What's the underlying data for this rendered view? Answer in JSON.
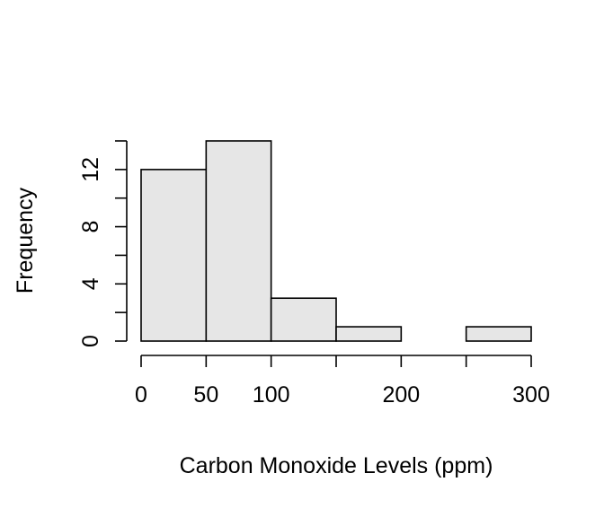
{
  "chart_data": {
    "type": "bar",
    "subtype": "histogram",
    "title": "",
    "xlabel": "Carbon Monoxide Levels (ppm)",
    "ylabel": "Frequency",
    "bins": [
      {
        "start": 0,
        "end": 50,
        "count": 12
      },
      {
        "start": 50,
        "end": 100,
        "count": 14
      },
      {
        "start": 100,
        "end": 150,
        "count": 3
      },
      {
        "start": 150,
        "end": 200,
        "count": 1
      },
      {
        "start": 200,
        "end": 250,
        "count": 0
      },
      {
        "start": 250,
        "end": 300,
        "count": 1
      }
    ],
    "xlim": [
      0,
      300
    ],
    "ylim": [
      0,
      14
    ],
    "x_ticks": [
      0,
      50,
      100,
      150,
      200,
      250,
      300
    ],
    "x_tick_labels": [
      "0",
      "50",
      "100",
      "",
      "200",
      "",
      "300"
    ],
    "y_ticks": [
      0,
      2,
      4,
      6,
      8,
      10,
      12,
      14
    ],
    "y_tick_labels": [
      "0",
      "",
      "4",
      "",
      "8",
      "",
      "12",
      ""
    ],
    "bar_color": "#e6e6e6",
    "grid": false,
    "legend": "none"
  }
}
